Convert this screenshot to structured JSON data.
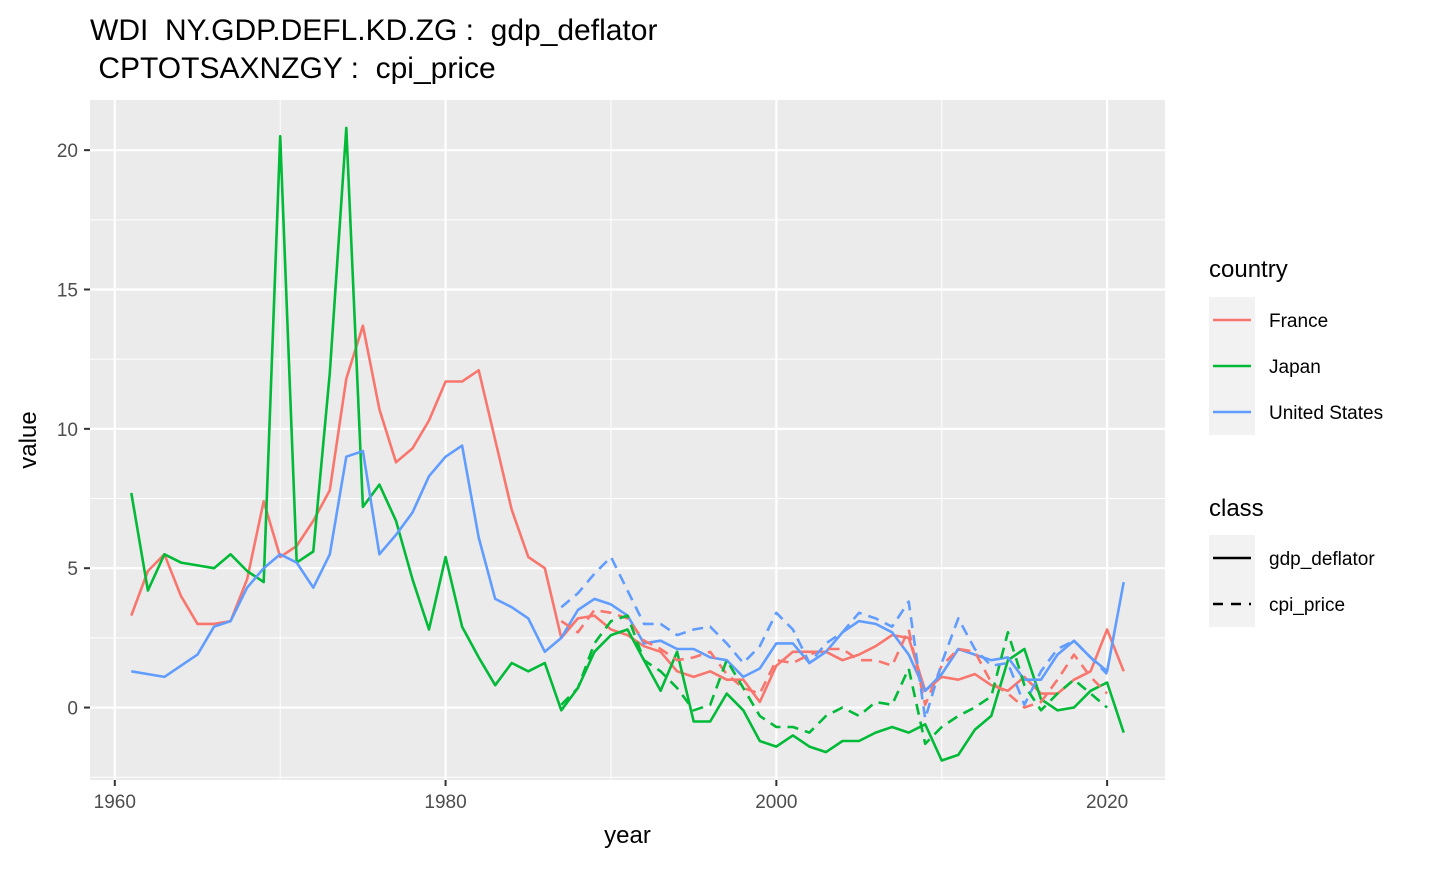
{
  "chart_data": {
    "type": "line",
    "title_lines": [
      "WDI  NY.GDP.DEFL.KD.ZG :  gdp_deflator",
      " CPTOTSAXNZGY :  cpi_price"
    ],
    "xlabel": "year",
    "ylabel": "value",
    "xlim": [
      1958.5,
      2023.5
    ],
    "ylim": [
      -2.6,
      21.8
    ],
    "x_ticks": [
      1960,
      1980,
      2000,
      2020
    ],
    "y_ticks": [
      0,
      5,
      10,
      15,
      20
    ],
    "grid": true,
    "colors": {
      "France": "#F8766D",
      "Japan": "#00BA38",
      "United States": "#619CFF"
    },
    "legend": {
      "position": "right",
      "country_title": "country",
      "countries": [
        "France",
        "Japan",
        "United States"
      ],
      "class_title": "class",
      "classes": [
        "gdp_deflator",
        "cpi_price"
      ]
    },
    "series": [
      {
        "country": "France",
        "class": "gdp_deflator",
        "x": [
          1961,
          1962,
          1963,
          1964,
          1965,
          1966,
          1967,
          1968,
          1969,
          1970,
          1971,
          1972,
          1973,
          1974,
          1975,
          1976,
          1977,
          1978,
          1979,
          1980,
          1981,
          1982,
          1983,
          1984,
          1985,
          1986,
          1987,
          1988,
          1989,
          1990,
          1991,
          1992,
          1993,
          1994,
          1995,
          1996,
          1997,
          1998,
          1999,
          2000,
          2001,
          2002,
          2003,
          2004,
          2005,
          2006,
          2007,
          2008,
          2009,
          2010,
          2011,
          2012,
          2013,
          2014,
          2015,
          2016,
          2017,
          2018,
          2019,
          2020,
          2021
        ],
        "y": [
          3.3,
          4.9,
          5.5,
          4.0,
          3.0,
          3.0,
          3.1,
          4.6,
          7.4,
          5.4,
          5.8,
          6.7,
          7.8,
          11.8,
          13.7,
          10.7,
          8.8,
          9.3,
          10.3,
          11.7,
          11.7,
          12.1,
          9.6,
          7.1,
          5.4,
          5.0,
          2.5,
          3.2,
          3.3,
          2.8,
          2.6,
          2.2,
          2.0,
          1.3,
          1.1,
          1.3,
          1.0,
          1.0,
          0.2,
          1.5,
          2.0,
          2.0,
          2.0,
          1.7,
          1.9,
          2.2,
          2.6,
          2.5,
          0.6,
          1.1,
          1.0,
          1.2,
          0.8,
          0.6,
          1.1,
          0.5,
          0.5,
          1.0,
          1.3,
          2.8,
          1.3
        ]
      },
      {
        "country": "Japan",
        "class": "gdp_deflator",
        "x": [
          1961,
          1962,
          1963,
          1964,
          1965,
          1966,
          1967,
          1968,
          1969,
          1970,
          1971,
          1972,
          1973,
          1974,
          1975,
          1976,
          1977,
          1978,
          1979,
          1980,
          1981,
          1982,
          1983,
          1984,
          1985,
          1986,
          1987,
          1988,
          1989,
          1990,
          1991,
          1992,
          1993,
          1994,
          1995,
          1996,
          1997,
          1998,
          1999,
          2000,
          2001,
          2002,
          2003,
          2004,
          2005,
          2006,
          2007,
          2008,
          2009,
          2010,
          2011,
          2012,
          2013,
          2014,
          2015,
          2016,
          2017,
          2018,
          2019,
          2020,
          2021
        ],
        "y": [
          7.7,
          4.2,
          5.5,
          5.2,
          5.1,
          5.0,
          5.5,
          4.9,
          4.5,
          20.5,
          5.2,
          5.6,
          12.0,
          20.8,
          7.2,
          8.0,
          6.7,
          4.6,
          2.8,
          5.4,
          2.9,
          1.8,
          0.8,
          1.6,
          1.3,
          1.6,
          -0.1,
          0.7,
          2.0,
          2.6,
          2.8,
          1.7,
          0.6,
          2.0,
          -0.5,
          -0.5,
          0.5,
          -0.1,
          -1.2,
          -1.4,
          -1.0,
          -1.4,
          -1.6,
          -1.2,
          -1.2,
          -0.9,
          -0.7,
          -0.9,
          -0.6,
          -1.9,
          -1.7,
          -0.8,
          -0.3,
          1.7,
          2.1,
          0.3,
          -0.1,
          0.0,
          0.6,
          0.9,
          -0.9
        ]
      },
      {
        "country": "United States",
        "class": "gdp_deflator",
        "x": [
          1961,
          1962,
          1963,
          1964,
          1965,
          1966,
          1967,
          1968,
          1969,
          1970,
          1971,
          1972,
          1973,
          1974,
          1975,
          1976,
          1977,
          1978,
          1979,
          1980,
          1981,
          1982,
          1983,
          1984,
          1985,
          1986,
          1987,
          1988,
          1989,
          1990,
          1991,
          1992,
          1993,
          1994,
          1995,
          1996,
          1997,
          1998,
          1999,
          2000,
          2001,
          2002,
          2003,
          2004,
          2005,
          2006,
          2007,
          2008,
          2009,
          2010,
          2011,
          2012,
          2013,
          2014,
          2015,
          2016,
          2017,
          2018,
          2019,
          2020,
          2021
        ],
        "y": [
          1.3,
          1.2,
          1.1,
          1.5,
          1.9,
          2.9,
          3.1,
          4.3,
          5.0,
          5.5,
          5.2,
          4.3,
          5.5,
          9.0,
          9.2,
          5.5,
          6.2,
          7.0,
          8.3,
          9.0,
          9.4,
          6.1,
          3.9,
          3.6,
          3.2,
          2.0,
          2.5,
          3.5,
          3.9,
          3.7,
          3.3,
          2.3,
          2.4,
          2.1,
          2.1,
          1.8,
          1.7,
          1.1,
          1.4,
          2.3,
          2.3,
          1.6,
          2.0,
          2.7,
          3.1,
          3.0,
          2.7,
          1.9,
          0.6,
          1.2,
          2.1,
          1.9,
          1.7,
          1.8,
          1.0,
          1.0,
          1.9,
          2.4,
          1.8,
          1.3,
          4.5
        ]
      },
      {
        "country": "France",
        "class": "cpi_price",
        "x": [
          1987,
          1988,
          1989,
          1990,
          1991,
          1992,
          1993,
          1994,
          1995,
          1996,
          1997,
          1998,
          1999,
          2000,
          2001,
          2002,
          2003,
          2004,
          2005,
          2006,
          2007,
          2008,
          2009,
          2010,
          2011,
          2012,
          2013,
          2014,
          2015,
          2016,
          2017,
          2018,
          2019,
          2020
        ],
        "y": [
          3.1,
          2.7,
          3.5,
          3.4,
          3.2,
          2.4,
          2.1,
          1.7,
          1.8,
          2.0,
          1.2,
          0.7,
          0.5,
          1.7,
          1.6,
          1.9,
          2.1,
          2.1,
          1.7,
          1.7,
          1.5,
          2.8,
          0.1,
          1.5,
          2.1,
          2.0,
          0.9,
          0.5,
          0.0,
          0.2,
          1.0,
          1.9,
          1.1,
          0.5
        ]
      },
      {
        "country": "Japan",
        "class": "cpi_price",
        "x": [
          1987,
          1988,
          1989,
          1990,
          1991,
          1992,
          1993,
          1994,
          1995,
          1996,
          1997,
          1998,
          1999,
          2000,
          2001,
          2002,
          2003,
          2004,
          2005,
          2006,
          2007,
          2008,
          2009,
          2010,
          2011,
          2012,
          2013,
          2014,
          2015,
          2016,
          2017,
          2018,
          2019,
          2020
        ],
        "y": [
          0.1,
          0.7,
          2.3,
          3.1,
          3.3,
          1.7,
          1.3,
          0.7,
          -0.1,
          0.1,
          1.7,
          0.7,
          -0.3,
          -0.7,
          -0.7,
          -0.9,
          -0.3,
          0.0,
          -0.3,
          0.2,
          0.1,
          1.4,
          -1.3,
          -0.7,
          -0.3,
          0.0,
          0.4,
          2.7,
          0.8,
          -0.1,
          0.5,
          1.0,
          0.5,
          0.0
        ]
      },
      {
        "country": "United States",
        "class": "cpi_price",
        "x": [
          1987,
          1988,
          1989,
          1990,
          1991,
          1992,
          1993,
          1994,
          1995,
          1996,
          1997,
          1998,
          1999,
          2000,
          2001,
          2002,
          2003,
          2004,
          2005,
          2006,
          2007,
          2008,
          2009,
          2010,
          2011,
          2012,
          2013,
          2014,
          2015,
          2016,
          2017,
          2018,
          2019,
          2020
        ],
        "y": [
          3.6,
          4.1,
          4.8,
          5.4,
          4.2,
          3.0,
          3.0,
          2.6,
          2.8,
          2.9,
          2.3,
          1.6,
          2.2,
          3.4,
          2.8,
          1.6,
          2.3,
          2.7,
          3.4,
          3.2,
          2.9,
          3.8,
          -0.4,
          1.6,
          3.2,
          2.1,
          1.5,
          1.6,
          0.1,
          1.3,
          2.1,
          2.4,
          1.8,
          1.2
        ]
      }
    ]
  }
}
